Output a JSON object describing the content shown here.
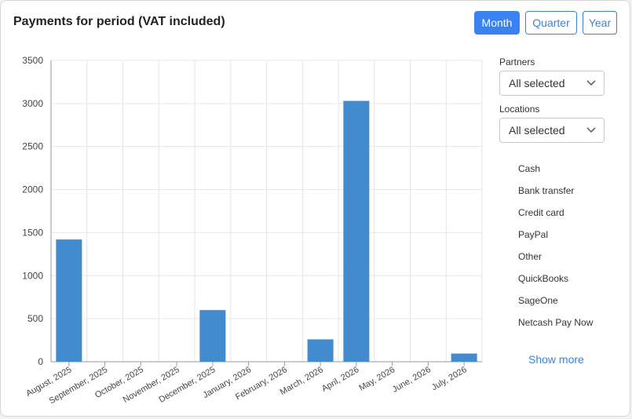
{
  "header": {
    "title": "Payments for period (VAT included)",
    "period_buttons": [
      {
        "label": "Month",
        "active": true
      },
      {
        "label": "Quarter",
        "active": false
      },
      {
        "label": "Year",
        "active": false
      }
    ]
  },
  "filters": {
    "partners": {
      "label": "Partners",
      "value": "All selected"
    },
    "locations": {
      "label": "Locations",
      "value": "All selected"
    }
  },
  "payment_types": [
    "Cash",
    "Bank transfer",
    "Credit card",
    "PayPal",
    "Other",
    "QuickBooks",
    "SageOne",
    "Netcash Pay Now"
  ],
  "show_more_label": "Show more",
  "colors": {
    "accent": "#3b82f1",
    "bar": "#428bcf"
  },
  "chart_data": {
    "type": "bar",
    "categories": [
      "August, 2025",
      "September, 2025",
      "October, 2025",
      "November, 2025",
      "December, 2025",
      "January, 2026",
      "February, 2026",
      "March, 2026",
      "April, 2026",
      "May, 2026",
      "June, 2026",
      "July, 2026"
    ],
    "values": [
      1420,
      0,
      0,
      0,
      600,
      0,
      0,
      260,
      3030,
      0,
      0,
      95
    ],
    "yticks": [
      0,
      500,
      1000,
      1500,
      2000,
      2500,
      3000,
      3500
    ],
    "ylim": [
      0,
      3500
    ],
    "grid": true,
    "title": "",
    "xlabel": "",
    "ylabel": ""
  }
}
